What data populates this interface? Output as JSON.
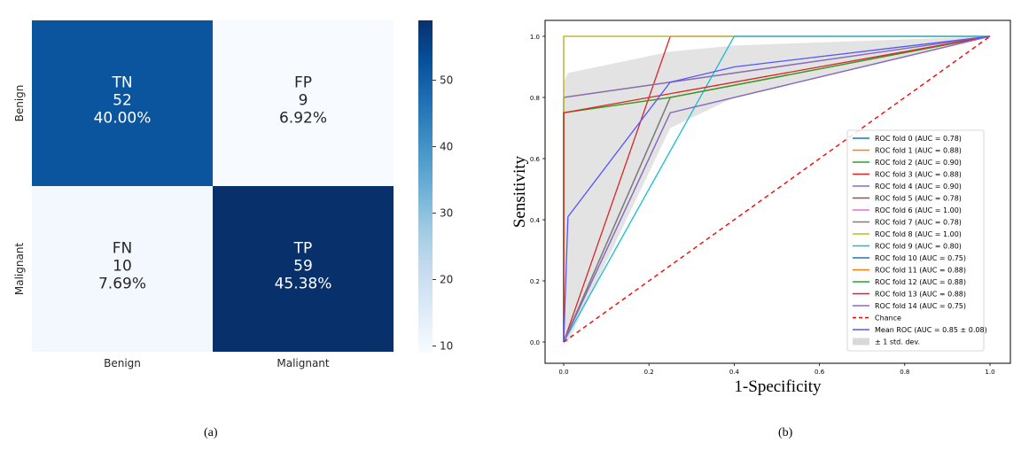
{
  "figure": {
    "caption_a": "(a)",
    "caption_b": "(b)"
  },
  "chart_data": [
    {
      "type": "heatmap",
      "row_labels": [
        "Benign",
        "Malignant"
      ],
      "col_labels": [
        "Benign",
        "Malignant"
      ],
      "cells": [
        [
          {
            "tag": "TN",
            "count": "52",
            "pct": "40.00%",
            "value": 52
          },
          {
            "tag": "FP",
            "count": "9",
            "pct": "6.92%",
            "value": 9
          }
        ],
        [
          {
            "tag": "FN",
            "count": "10",
            "pct": "7.69%",
            "value": 10
          },
          {
            "tag": "TP",
            "count": "59",
            "pct": "45.38%",
            "value": 59
          }
        ]
      ],
      "colorbar": {
        "min": 9,
        "max": 59,
        "ticks": [
          "10",
          "20",
          "30",
          "40",
          "50"
        ],
        "colormap": "Blues"
      },
      "colors": {
        "light": "#f7fbff",
        "dark": "#08306b"
      }
    },
    {
      "type": "line",
      "xlabel": "1-Specificity",
      "ylabel": "Sensitivity",
      "xlim": [
        0,
        1
      ],
      "ylim": [
        0,
        1
      ],
      "xticks": [
        "0.0",
        "0.2",
        "0.4",
        "0.6",
        "0.8",
        "1.0"
      ],
      "yticks": [
        "0.0",
        "0.2",
        "0.4",
        "0.6",
        "0.8",
        "1.0"
      ],
      "legend_position": "lower-right",
      "series": [
        {
          "name": "ROC fold 0 (AUC = 0.78)",
          "color": "#1f77b4",
          "x": [
            0,
            0.25,
            1
          ],
          "y": [
            0,
            0.8,
            1
          ]
        },
        {
          "name": "ROC fold 1 (AUC = 0.88)",
          "color": "#ff7f0e",
          "x": [
            0,
            0,
            0.25,
            1
          ],
          "y": [
            0,
            0.75,
            0.8,
            1
          ]
        },
        {
          "name": "ROC fold 2 (AUC = 0.90)",
          "color": "#2ca02c",
          "x": [
            0,
            0,
            1
          ],
          "y": [
            0,
            0.8,
            1
          ]
        },
        {
          "name": "ROC fold 3 (AUC = 0.88)",
          "color": "#d62728",
          "x": [
            0,
            0.25,
            1
          ],
          "y": [
            0,
            1,
            1
          ]
        },
        {
          "name": "ROC fold 4 (AUC = 0.90)",
          "color": "#9467bd",
          "x": [
            0,
            0,
            1
          ],
          "y": [
            0,
            0.8,
            1
          ]
        },
        {
          "name": "ROC fold 5 (AUC = 0.78)",
          "color": "#8c564b",
          "x": [
            0,
            0.25,
            1
          ],
          "y": [
            0,
            0.8,
            1
          ]
        },
        {
          "name": "ROC fold 6 (AUC = 1.00)",
          "color": "#e377c2",
          "x": [
            0,
            0,
            1
          ],
          "y": [
            0,
            1,
            1
          ]
        },
        {
          "name": "ROC fold 7 (AUC = 0.78)",
          "color": "#7f7f7f",
          "x": [
            0,
            0.25,
            1
          ],
          "y": [
            0,
            0.8,
            1
          ]
        },
        {
          "name": "ROC fold 8 (AUC = 1.00)",
          "color": "#bcbd22",
          "x": [
            0,
            0,
            1
          ],
          "y": [
            0,
            1,
            1
          ]
        },
        {
          "name": "ROC fold 9 (AUC = 0.80)",
          "color": "#17becf",
          "x": [
            0,
            0.4,
            1
          ],
          "y": [
            0,
            1,
            1
          ]
        },
        {
          "name": "ROC fold 10 (AUC = 0.75)",
          "color": "#1f77b4",
          "x": [
            0,
            0.25,
            1
          ],
          "y": [
            0,
            0.75,
            1
          ]
        },
        {
          "name": "ROC fold 11 (AUC = 0.88)",
          "color": "#ff7f0e",
          "x": [
            0,
            0,
            0.25,
            1
          ],
          "y": [
            0,
            0.75,
            0.8,
            1
          ]
        },
        {
          "name": "ROC fold 12 (AUC = 0.88)",
          "color": "#2ca02c",
          "x": [
            0,
            0,
            0.25,
            1
          ],
          "y": [
            0,
            0.75,
            0.8,
            1
          ]
        },
        {
          "name": "ROC fold 13 (AUC = 0.88)",
          "color": "#d62728",
          "x": [
            0,
            0,
            1
          ],
          "y": [
            0,
            0.75,
            1
          ]
        },
        {
          "name": "ROC fold 14 (AUC = 0.75)",
          "color": "#9467bd",
          "x": [
            0,
            0.25,
            1
          ],
          "y": [
            0,
            0.75,
            1
          ]
        },
        {
          "name": "Chance",
          "color": "#ff0000",
          "dashed": true,
          "x": [
            0,
            1
          ],
          "y": [
            0,
            1
          ]
        },
        {
          "name": "Mean ROC (AUC = 0.85 ± 0.08)",
          "color": "#5555ff",
          "x": [
            0,
            0.01,
            0.25,
            0.4,
            1
          ],
          "y": [
            0,
            0.41,
            0.85,
            0.9,
            1
          ]
        }
      ],
      "band": {
        "name": "± 1 std. dev.",
        "color": "#d9d9d9",
        "x": [
          0,
          0.01,
          0.25,
          0.4,
          1
        ],
        "upper": [
          0.85,
          0.88,
          0.95,
          0.97,
          1
        ],
        "lower": [
          0,
          0,
          0.7,
          0.8,
          1
        ]
      }
    }
  ]
}
